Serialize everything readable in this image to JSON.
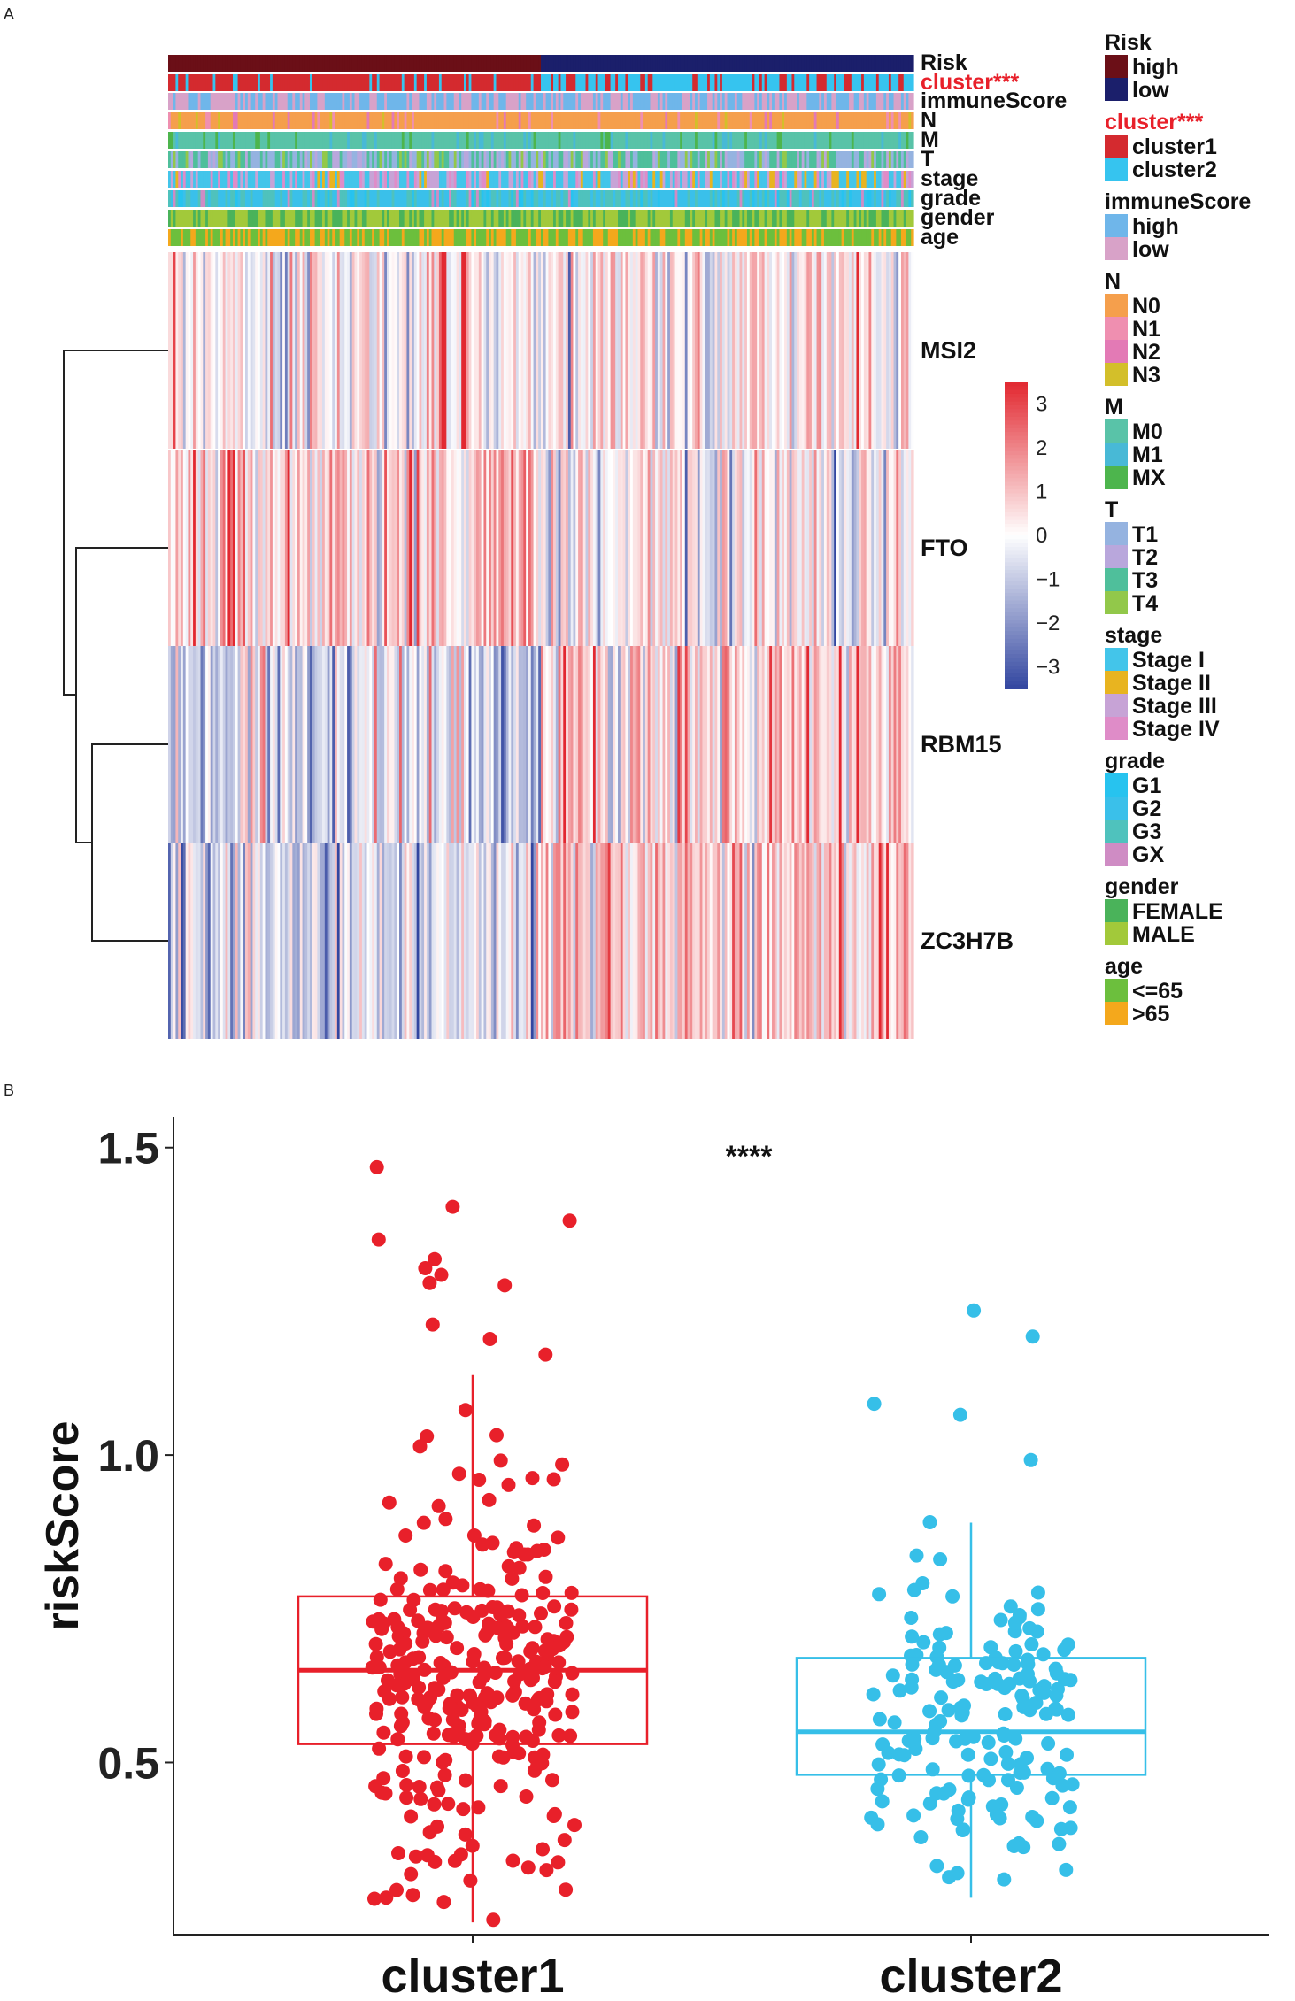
{
  "panels": {
    "a": "A",
    "b": "B"
  },
  "chart_data": [
    {
      "type": "heatmap",
      "title": "",
      "annotation_tracks": [
        {
          "name": "Risk",
          "highlight": false
        },
        {
          "name": "cluster***",
          "highlight": true
        },
        {
          "name": "immuneScore",
          "highlight": false
        },
        {
          "name": "N",
          "highlight": false
        },
        {
          "name": "M",
          "highlight": false
        },
        {
          "name": "T",
          "highlight": false
        },
        {
          "name": "stage",
          "highlight": false
        },
        {
          "name": "grade",
          "highlight": false
        },
        {
          "name": "gender",
          "highlight": false
        },
        {
          "name": "age",
          "highlight": false
        }
      ],
      "rows": [
        "MSI2",
        "FTO",
        "RBM15",
        "ZC3H7B"
      ],
      "colorbar": {
        "ticks": [
          "3",
          "2",
          "1",
          "0",
          "−1",
          "−2",
          "−3"
        ],
        "min": -3.5,
        "max": 3.5
      },
      "legend": [
        {
          "title": "Risk",
          "highlight": false,
          "items": [
            {
              "label": "high",
              "color": "#6b0f17"
            },
            {
              "label": "low",
              "color": "#1b1f6b"
            }
          ]
        },
        {
          "title": "cluster***",
          "highlight": true,
          "items": [
            {
              "label": "cluster1",
              "color": "#d42a2f"
            },
            {
              "label": "cluster2",
              "color": "#36c4ef"
            }
          ]
        },
        {
          "title": "immuneScore",
          "highlight": false,
          "items": [
            {
              "label": "high",
              "color": "#6fb6ea"
            },
            {
              "label": "low",
              "color": "#d8a2c8"
            }
          ]
        },
        {
          "title": "N",
          "highlight": false,
          "items": [
            {
              "label": "N0",
              "color": "#f59f4c"
            },
            {
              "label": "N1",
              "color": "#ef8fb0"
            },
            {
              "label": "N2",
              "color": "#e37ab5"
            },
            {
              "label": "N3",
              "color": "#d3bf2a"
            }
          ]
        },
        {
          "title": "M",
          "highlight": false,
          "items": [
            {
              "label": "M0",
              "color": "#59c3a8"
            },
            {
              "label": "M1",
              "color": "#48b9d6"
            },
            {
              "label": "MX",
              "color": "#4db54d"
            }
          ]
        },
        {
          "title": "T",
          "highlight": false,
          "items": [
            {
              "label": "T1",
              "color": "#95b3e0"
            },
            {
              "label": "T2",
              "color": "#b9a7dc"
            },
            {
              "label": "T3",
              "color": "#4fbf9b"
            },
            {
              "label": "T4",
              "color": "#92c84a"
            }
          ]
        },
        {
          "title": "stage",
          "highlight": false,
          "items": [
            {
              "label": "Stage I",
              "color": "#43c5ea"
            },
            {
              "label": "Stage II",
              "color": "#e8b420"
            },
            {
              "label": "Stage III",
              "color": "#c7a3d6"
            },
            {
              "label": "Stage IV",
              "color": "#df8cc8"
            }
          ]
        },
        {
          "title": "grade",
          "highlight": false,
          "items": [
            {
              "label": "G1",
              "color": "#27c3ef"
            },
            {
              "label": "G2",
              "color": "#3ac0ea"
            },
            {
              "label": "G3",
              "color": "#4fc2bd"
            },
            {
              "label": "GX",
              "color": "#cf8cc4"
            }
          ]
        },
        {
          "title": "gender",
          "highlight": false,
          "items": [
            {
              "label": "FEMALE",
              "color": "#4ab35a"
            },
            {
              "label": "MALE",
              "color": "#a2c93a"
            }
          ]
        },
        {
          "title": "age",
          "highlight": false,
          "items": [
            {
              "label": "<=65",
              "color": "#6cbf3d"
            },
            {
              "label": ">65",
              "color": "#f4a81c"
            }
          ]
        }
      ]
    },
    {
      "type": "scatter",
      "subtype": "box-with-jitter",
      "title": "",
      "xlabel": "",
      "ylabel": "riskScore",
      "ylim": [
        0.22,
        1.55
      ],
      "yticks": [
        0.5,
        1.0,
        1.5
      ],
      "ytick_labels": [
        "0.5",
        "1.0",
        "1.5"
      ],
      "significance": "****",
      "categories": [
        "cluster1",
        "cluster2"
      ],
      "series": [
        {
          "name": "cluster1",
          "color": "#e8202a",
          "n": 300,
          "box": {
            "whisker_low": 0.24,
            "q1": 0.53,
            "median": 0.65,
            "q3": 0.77,
            "whisker_high": 1.13
          }
        },
        {
          "name": "cluster2",
          "color": "#36bfe8",
          "n": 170,
          "box": {
            "whisker_low": 0.28,
            "q1": 0.48,
            "median": 0.55,
            "q3": 0.67,
            "whisker_high": 0.89
          }
        }
      ]
    }
  ]
}
